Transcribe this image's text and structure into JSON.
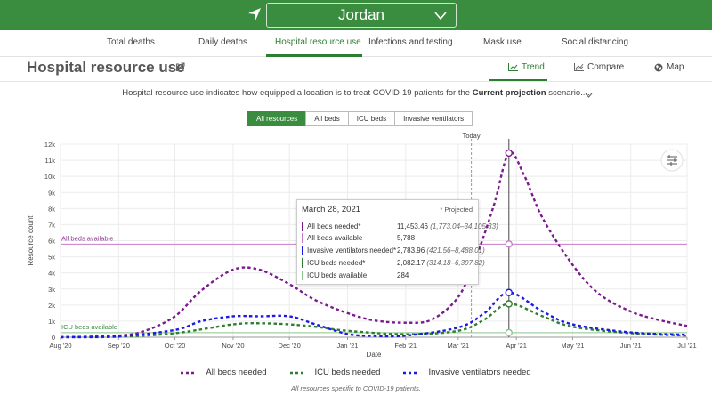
{
  "header": {
    "location": "Jordan"
  },
  "nav": {
    "tabs": [
      "Total deaths",
      "Daily deaths",
      "Hospital resource use",
      "Infections and testing",
      "Mask use",
      "Social distancing"
    ],
    "active": "Hospital resource use"
  },
  "page": {
    "title": "Hospital resource use",
    "views": [
      "Trend",
      "Compare",
      "Map"
    ],
    "active_view": "Trend",
    "description_prefix": "Hospital resource use indicates how equipped a location is to treat COVID-19 patients for the ",
    "description_bold": "Current projection",
    "description_suffix": " scenario...."
  },
  "filters": {
    "options": [
      "All resources",
      "All beds",
      "ICU beds",
      "Invasive ventilators"
    ],
    "active": "All resources"
  },
  "colors": {
    "accent": "#3a8c3f",
    "all_beds": "#7b1a8c",
    "icu_beds": "#2e7d32",
    "ventilators": "#1a1ae6",
    "all_beds_available": "#c77cc7",
    "icu_beds_available": "#8bc48b"
  },
  "chart_data": {
    "type": "line",
    "xlabel": "Date",
    "ylabel": "Resource count",
    "x_tick_labels": [
      "Aug '20",
      "Sep '20",
      "Oct '20",
      "Nov '20",
      "Dec '20",
      "Jan '21",
      "Feb '21",
      "Mar '21",
      "Apr '21",
      "May '21",
      "Jun '21",
      "Jul '21"
    ],
    "y_tick_labels": [
      "0",
      "1k",
      "2k",
      "3k",
      "4k",
      "5k",
      "6k",
      "7k",
      "8k",
      "9k",
      "10k",
      "11k",
      "12k"
    ],
    "ylim": [
      0,
      12000
    ],
    "xlim": [
      "2020-08-01",
      "2021-07-01"
    ],
    "grid": true,
    "today": {
      "label": "Today",
      "date": "2021-03-08"
    },
    "series": [
      {
        "name": "All beds needed",
        "color": "#7b1a8c",
        "dashed": true,
        "x": [
          "2020-08-01",
          "2020-09-01",
          "2020-09-15",
          "2020-10-01",
          "2020-10-15",
          "2020-11-01",
          "2020-11-15",
          "2020-12-01",
          "2020-12-15",
          "2021-01-01",
          "2021-01-15",
          "2021-02-01",
          "2021-02-15",
          "2021-03-01",
          "2021-03-10",
          "2021-03-20",
          "2021-03-28",
          "2021-04-05",
          "2021-04-15",
          "2021-05-01",
          "2021-05-15",
          "2021-06-01",
          "2021-06-15",
          "2021-07-01"
        ],
        "y": [
          0,
          100,
          400,
          1300,
          2900,
          4200,
          4200,
          3300,
          2300,
          1500,
          1050,
          900,
          1100,
          2500,
          4800,
          8200,
          11450,
          10100,
          7400,
          4500,
          2700,
          1600,
          1100,
          700
        ]
      },
      {
        "name": "ICU beds needed",
        "color": "#2e7d32",
        "dashed": true,
        "x": [
          "2020-08-01",
          "2020-09-01",
          "2020-10-01",
          "2020-11-01",
          "2020-11-15",
          "2020-12-01",
          "2020-12-15",
          "2021-01-01",
          "2021-02-01",
          "2021-03-01",
          "2021-03-15",
          "2021-03-28",
          "2021-04-15",
          "2021-05-01",
          "2021-06-01",
          "2021-07-01"
        ],
        "y": [
          0,
          30,
          250,
          800,
          870,
          800,
          650,
          400,
          180,
          400,
          1100,
          2080,
          1300,
          650,
          250,
          100
        ]
      },
      {
        "name": "Invasive ventilators needed",
        "color": "#1a1ae6",
        "dashed": true,
        "x": [
          "2020-08-01",
          "2020-09-01",
          "2020-10-01",
          "2020-10-15",
          "2020-11-01",
          "2020-11-15",
          "2020-12-01",
          "2020-12-15",
          "2021-01-01",
          "2021-01-15",
          "2021-02-01",
          "2021-03-01",
          "2021-03-15",
          "2021-03-28",
          "2021-04-15",
          "2021-05-01",
          "2021-06-01",
          "2021-07-01"
        ],
        "y": [
          0,
          60,
          450,
          1000,
          1300,
          1300,
          1300,
          800,
          200,
          80,
          100,
          600,
          1500,
          2780,
          1600,
          800,
          300,
          150
        ]
      },
      {
        "name": "All beds available",
        "color": "#c77cc7",
        "dashed": false,
        "constant": 5788
      },
      {
        "name": "ICU beds available",
        "color": "#8bc48b",
        "dashed": false,
        "constant": 284
      }
    ],
    "annotations": [
      "All beds available",
      "ICU beds available"
    ],
    "legend": [
      "All beds needed",
      "ICU beds needed",
      "Invasive ventilators needed"
    ],
    "tooltip": {
      "date": "March 28, 2021",
      "note": "* Projected",
      "rows": [
        {
          "label": "All beds needed*",
          "value": "11,453.46",
          "range": "(1,773.04–34,105.33)",
          "color": "#7b1a8c"
        },
        {
          "label": "All beds available",
          "value": "5,788",
          "range": "",
          "color": "#c77cc7"
        },
        {
          "label": "Invasive ventilators needed*",
          "value": "2,783.96",
          "range": "(421.56–8,488.01)",
          "color": "#1a1ae6"
        },
        {
          "label": "ICU beds needed*",
          "value": "2,082.17",
          "range": "(314.18–6,397.82)",
          "color": "#2e7d32"
        },
        {
          "label": "ICU beds available",
          "value": "284",
          "range": "",
          "color": "#8bc48b"
        }
      ]
    }
  },
  "footnote": "All resources specific to COVID-19 patients."
}
